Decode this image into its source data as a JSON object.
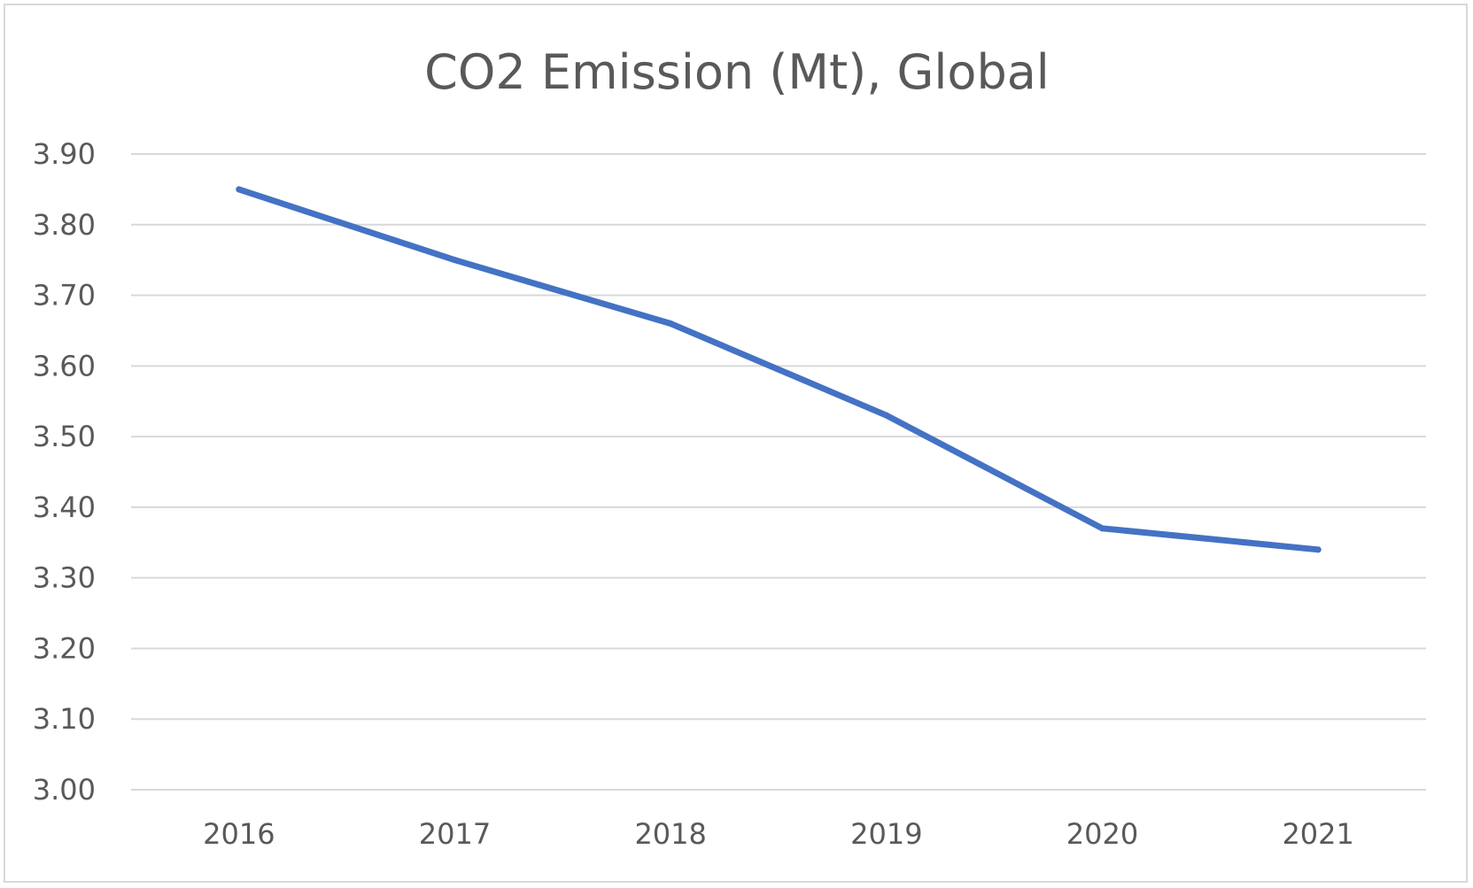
{
  "chart_data": {
    "type": "line",
    "title": "CO2 Emission (Mt), Global",
    "xlabel": "",
    "ylabel": "",
    "categories": [
      "2016",
      "2017",
      "2018",
      "2019",
      "2020",
      "2021"
    ],
    "series": [
      {
        "values": [
          3.85,
          3.75,
          3.66,
          3.53,
          3.37,
          3.34
        ],
        "color": "#4472c4"
      }
    ],
    "ylim": [
      3.0,
      3.9
    ],
    "yticks": [
      "3.00",
      "3.10",
      "3.20",
      "3.30",
      "3.40",
      "3.50",
      "3.60",
      "3.70",
      "3.80",
      "3.90"
    ],
    "grid": true,
    "legend": "none"
  }
}
